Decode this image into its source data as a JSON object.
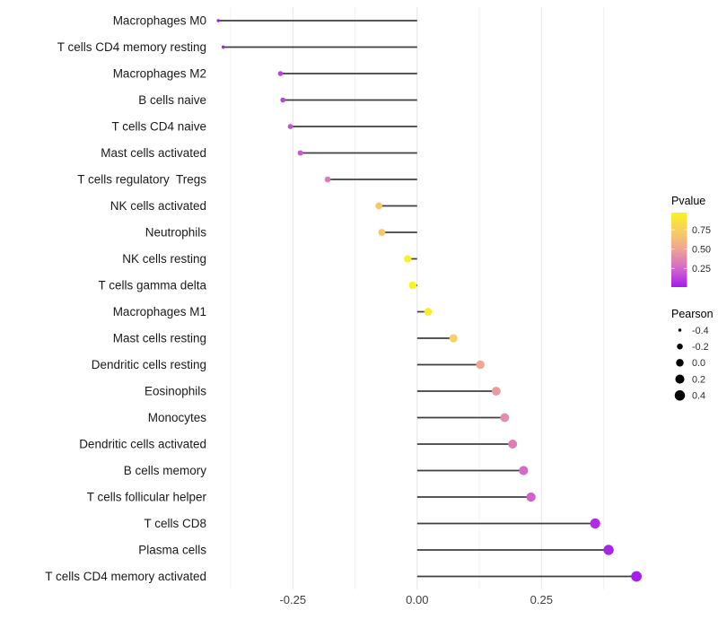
{
  "chart_data": {
    "type": "lollipop",
    "orientation": "horizontal",
    "title": "",
    "xlabel": "",
    "ylabel": "",
    "x_axis": {
      "tick_labels": [
        "-0.25",
        "0.00",
        "0.25"
      ],
      "tick_values": [
        -0.25,
        0.0,
        0.25
      ],
      "minor_tick_values": [
        -0.375,
        -0.125,
        0.125,
        0.375
      ],
      "range": [
        -0.41,
        0.47
      ],
      "grid": true
    },
    "points": [
      {
        "label": "Macrophages M0",
        "pearson": -0.4,
        "pvalue": 0.01
      },
      {
        "label": "T cells CD4 memory resting",
        "pearson": -0.39,
        "pvalue": 0.03
      },
      {
        "label": "Macrophages M2",
        "pearson": -0.275,
        "pvalue": 0.12
      },
      {
        "label": "B cells naive",
        "pearson": -0.27,
        "pvalue": 0.13
      },
      {
        "label": "T cells CD4 naive",
        "pearson": -0.255,
        "pvalue": 0.18
      },
      {
        "label": "Mast cells activated",
        "pearson": -0.235,
        "pvalue": 0.2
      },
      {
        "label": "T cells regulatory  Tregs",
        "pearson": -0.18,
        "pvalue": 0.33
      },
      {
        "label": "NK cells activated",
        "pearson": -0.077,
        "pvalue": 0.7
      },
      {
        "label": "Neutrophils",
        "pearson": -0.071,
        "pvalue": 0.69
      },
      {
        "label": "NK cells resting",
        "pearson": -0.019,
        "pvalue": 0.95
      },
      {
        "label": "T cells gamma delta",
        "pearson": -0.009,
        "pvalue": 0.97
      },
      {
        "label": "Macrophages M1",
        "pearson": 0.022,
        "pvalue": 0.93
      },
      {
        "label": "Mast cells resting",
        "pearson": 0.073,
        "pvalue": 0.74
      },
      {
        "label": "Dendritic cells resting",
        "pearson": 0.127,
        "pvalue": 0.52
      },
      {
        "label": "Eosinophils",
        "pearson": 0.159,
        "pvalue": 0.45
      },
      {
        "label": "Monocytes",
        "pearson": 0.176,
        "pvalue": 0.4
      },
      {
        "label": "Dendritic cells activated",
        "pearson": 0.192,
        "pvalue": 0.34
      },
      {
        "label": "B cells memory",
        "pearson": 0.214,
        "pvalue": 0.25
      },
      {
        "label": "T cells follicular helper",
        "pearson": 0.229,
        "pvalue": 0.23
      },
      {
        "label": "T cells CD8",
        "pearson": 0.358,
        "pvalue": 0.06
      },
      {
        "label": "Plasma cells",
        "pearson": 0.385,
        "pvalue": 0.04
      },
      {
        "label": "T cells CD4 memory activated",
        "pearson": 0.441,
        "pvalue": 0.02
      }
    ]
  },
  "legend_pvalue": {
    "title": "Pvalue",
    "tick_labels": [
      "0.75",
      "0.50",
      "0.25"
    ],
    "tick_values": [
      0.75,
      0.5,
      0.25
    ],
    "value_range": [
      0.01,
      0.97
    ],
    "gradient_stops": [
      {
        "t": 0.0,
        "color": "#A41BF0"
      },
      {
        "t": 0.25,
        "color": "#D369C8"
      },
      {
        "t": 0.5,
        "color": "#EEA295"
      },
      {
        "t": 0.75,
        "color": "#F6CE64"
      },
      {
        "t": 1.0,
        "color": "#F9F320"
      }
    ]
  },
  "legend_pearson": {
    "title": "Pearson",
    "entries": [
      {
        "label": "-0.4",
        "value": -0.4
      },
      {
        "label": "-0.2",
        "value": -0.2
      },
      {
        "label": "0.0",
        "value": 0.0
      },
      {
        "label": "0.2",
        "value": 0.2
      },
      {
        "label": "0.4",
        "value": 0.4
      }
    ],
    "dot_color": "#000000"
  },
  "colors": {
    "background": "#FFFFFF",
    "stem": "#3F3F3F",
    "grid_major": "#E4E4E4",
    "grid_minor": "#F2F2F2",
    "axis_text": "#404040",
    "category_text": "#1A1A1A"
  }
}
